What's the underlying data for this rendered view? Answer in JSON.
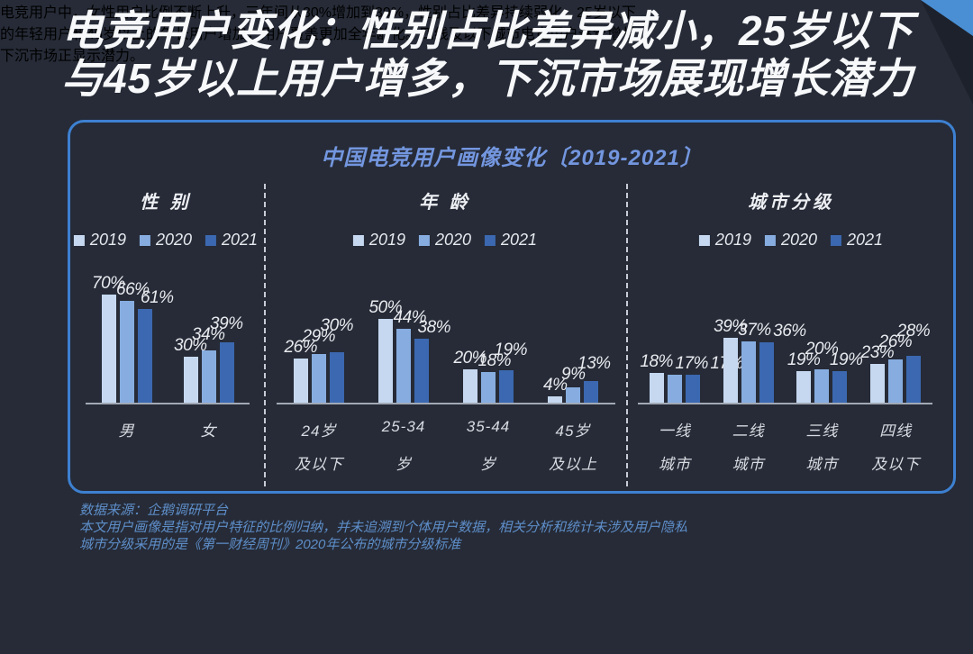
{
  "page": {
    "title_lines": [
      "电竞用户变化：性别占比差异减小，25岁以下",
      "与45岁以上用户增多，下沉市场展现增长潜力"
    ]
  },
  "colors": {
    "background": "#262B37",
    "corner_ribbon_blue": "#4A8FD4",
    "corner_ribbon_shadow": "#1C212B",
    "panel_border": "#3D80D1",
    "panel_title": "#7396DF",
    "bar_2019": "#C6D8F0",
    "bar_2020": "#87ADE0",
    "bar_2021": "#3B68B0",
    "axis_line": "#A2AAB6",
    "footnote_blue": "#5E8EC9",
    "label_text": "#E9EBEF"
  },
  "chart_data": {
    "type": "bar",
    "title": "中国电竞用户画像变化〔2019-2021〕",
    "unit": "%",
    "legend_years": [
      "2019",
      "2020",
      "2021"
    ],
    "legend_position": "top-per-section",
    "grid": false,
    "ylim": [
      0,
      80
    ],
    "sections": [
      {
        "header": "性 别",
        "categories": [
          [
            "男"
          ],
          [
            "女"
          ]
        ],
        "series": [
          {
            "name": "2019",
            "color": "#C6D8F0",
            "values": [
              70,
              30
            ]
          },
          {
            "name": "2020",
            "color": "#87ADE0",
            "values": [
              66,
              34
            ]
          },
          {
            "name": "2021",
            "color": "#3B68B0",
            "values": [
              61,
              39
            ]
          }
        ]
      },
      {
        "header": "年 龄",
        "categories": [
          [
            "24岁",
            "及以下"
          ],
          [
            "25-34",
            "岁"
          ],
          [
            "35-44",
            "岁"
          ],
          [
            "45岁",
            "及以上"
          ]
        ],
        "series": [
          {
            "name": "2019",
            "color": "#C6D8F0",
            "values": [
              26,
              50,
              20,
              4
            ]
          },
          {
            "name": "2020",
            "color": "#87ADE0",
            "values": [
              29,
              44,
              18,
              9
            ]
          },
          {
            "name": "2021",
            "color": "#3B68B0",
            "values": [
              30,
              38,
              19,
              13
            ]
          }
        ]
      },
      {
        "header": "城市分级",
        "categories": [
          [
            "一线",
            "城市"
          ],
          [
            "二线",
            "城市"
          ],
          [
            "三线",
            "城市"
          ],
          [
            "四线",
            "及以下"
          ]
        ],
        "series": [
          {
            "name": "2019",
            "color": "#C6D8F0",
            "values": [
              18,
              39,
              19,
              23
            ]
          },
          {
            "name": "2020",
            "color": "#87ADE0",
            "values": [
              17,
              37,
              20,
              26
            ]
          },
          {
            "name": "2021",
            "color": "#3B68B0",
            "values": [
              17,
              36,
              19,
              28
            ]
          }
        ]
      }
    ]
  },
  "footnotes": [
    "数据来源：企鹅调研平台",
    "本文用户画像是指对用户特征的比例归纳，并未追溯到个体用户数据，相关分析和统计未涉及用户隐私",
    "城市分级采用的是《第一财经周刊》2020年公布的城市分级标准"
  ],
  "body": {
    "lines": [
      "电竞用户中，女性用户比例不断上升，三年间从30%增加到39%，性别占比差异持续弱化。25岁以下",
      "的年轻用户和45岁以上的年长用户增加，用户覆盖更加全年龄化。四线及以下城市电竞用户逐年增长，",
      "下沉市场正显示潜力。"
    ]
  }
}
